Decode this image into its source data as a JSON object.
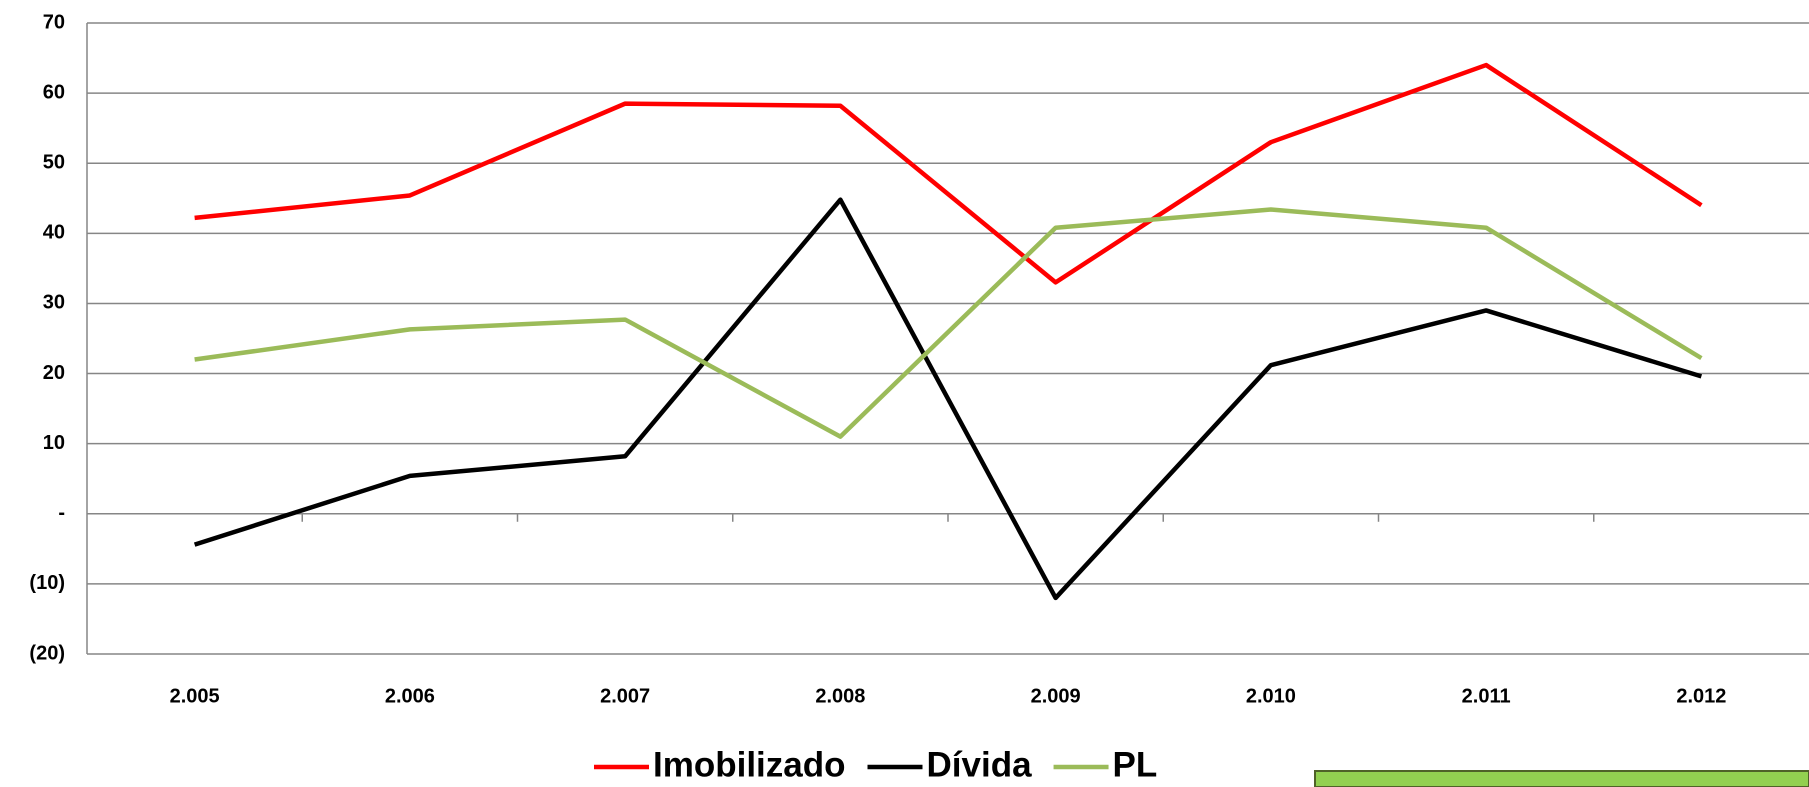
{
  "chart_data": {
    "type": "line",
    "categories": [
      "2.005",
      "2.006",
      "2.007",
      "2.008",
      "2.009",
      "2.010",
      "2.011",
      "2.012"
    ],
    "series": [
      {
        "name": "Imobilizado",
        "color": "#ff0000",
        "values": [
          42.2,
          45.4,
          58.5,
          58.2,
          33.0,
          53.0,
          64.0,
          44.0
        ]
      },
      {
        "name": "Dívida",
        "color": "#000000",
        "values": [
          -4.4,
          5.4,
          8.2,
          44.8,
          -12.0,
          21.2,
          29.0,
          19.6
        ]
      },
      {
        "name": "PL",
        "color": "#9bbb59",
        "values": [
          22.0,
          26.3,
          27.7,
          11.0,
          40.8,
          43.4,
          40.8,
          22.2
        ]
      }
    ],
    "ylim": [
      -20,
      70
    ],
    "yticks": [
      {
        "value": -20,
        "label": "(20)"
      },
      {
        "value": -10,
        "label": "(10)"
      },
      {
        "value": 0,
        "label": "-"
      },
      10,
      20,
      30,
      40,
      50,
      60,
      70
    ],
    "grid": true,
    "legend": "bottom"
  }
}
